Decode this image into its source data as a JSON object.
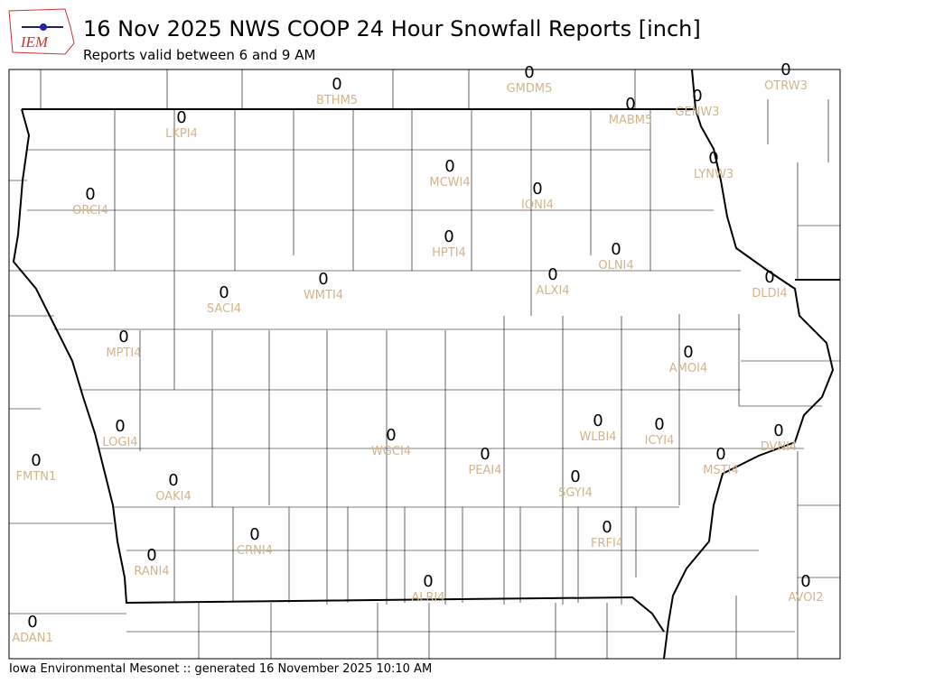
{
  "header": {
    "logo": "IEM",
    "title": "16 Nov 2025 NWS COOP 24 Hour Snowfall Reports [inch]",
    "subtitle": "Reports valid between 6 and 9 AM"
  },
  "stations": [
    {
      "id": "BTHM5",
      "value": 0
    },
    {
      "id": "GMDM5",
      "value": 0
    },
    {
      "id": "MABM5",
      "value": 0
    },
    {
      "id": "GENW3",
      "value": 0
    },
    {
      "id": "OTRW3",
      "value": 0
    },
    {
      "id": "LKPI4",
      "value": 0
    },
    {
      "id": "ORCI4",
      "value": 0
    },
    {
      "id": "MCWI4",
      "value": 0
    },
    {
      "id": "IONI4",
      "value": 0
    },
    {
      "id": "LYNW3",
      "value": 0
    },
    {
      "id": "HPTI4",
      "value": 0
    },
    {
      "id": "OLNI4",
      "value": 0
    },
    {
      "id": "ALXI4",
      "value": 0
    },
    {
      "id": "DLDI4",
      "value": 0
    },
    {
      "id": "WMTI4",
      "value": 0
    },
    {
      "id": "SACI4",
      "value": 0
    },
    {
      "id": "MPTI4",
      "value": 0
    },
    {
      "id": "AMOI4",
      "value": 0
    },
    {
      "id": "LOGI4",
      "value": 0
    },
    {
      "id": "WGCI4",
      "value": 0
    },
    {
      "id": "WLBI4",
      "value": 0
    },
    {
      "id": "ICYI4",
      "value": 0
    },
    {
      "id": "DVNI4",
      "value": 0
    },
    {
      "id": "FMTN1",
      "value": 0
    },
    {
      "id": "PEAI4",
      "value": 0
    },
    {
      "id": "MSTI4",
      "value": 0
    },
    {
      "id": "SGYI4",
      "value": 0
    },
    {
      "id": "OAKI4",
      "value": 0
    },
    {
      "id": "CRNI4",
      "value": 0
    },
    {
      "id": "FRFI4",
      "value": 0
    },
    {
      "id": "RANI4",
      "value": 0
    },
    {
      "id": "ALRI4",
      "value": 0
    },
    {
      "id": "AVOI2",
      "value": 0
    },
    {
      "id": "ADAN1",
      "value": 0
    }
  ],
  "footer": "Iowa Environmental Mesonet :: generated 16 November 2025 10:10 AM"
}
